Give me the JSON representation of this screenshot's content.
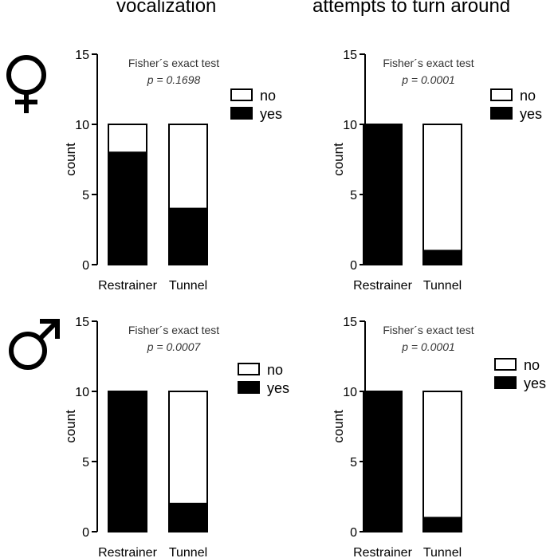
{
  "column_titles": [
    "vocalization",
    "attempts to turn around"
  ],
  "row_symbols": [
    "♀",
    "♂"
  ],
  "colors": {
    "yes": "#000000",
    "no": "#ffffff",
    "stroke": "#000000"
  },
  "chart_data": [
    {
      "type": "bar",
      "stacked": true,
      "title": "vocalization",
      "row": "♀",
      "annotation": {
        "test": "Fisher´s exact test",
        "p": "p = 0.1698"
      },
      "categories": [
        "Restrainer",
        "Tunnel"
      ],
      "series": [
        {
          "name": "yes",
          "values": [
            8,
            4
          ]
        },
        {
          "name": "no",
          "values": [
            2,
            6
          ]
        }
      ],
      "ylabel": "count",
      "xlabel": "",
      "ylim": [
        0,
        15
      ],
      "yticks": [
        0,
        5,
        10,
        15
      ],
      "legend": [
        "no",
        "yes"
      ],
      "legend_position": "top-right",
      "grid": false
    },
    {
      "type": "bar",
      "stacked": true,
      "title": "attempts to turn around",
      "row": "♀",
      "annotation": {
        "test": "Fisher´s exact test",
        "p": "p = 0.0001"
      },
      "categories": [
        "Restrainer",
        "Tunnel"
      ],
      "series": [
        {
          "name": "yes",
          "values": [
            10,
            1
          ]
        },
        {
          "name": "no",
          "values": [
            0,
            9
          ]
        }
      ],
      "ylabel": "count",
      "xlabel": "",
      "ylim": [
        0,
        15
      ],
      "yticks": [
        0,
        5,
        10,
        15
      ],
      "legend": [
        "no",
        "yes"
      ],
      "legend_position": "top-right",
      "grid": false
    },
    {
      "type": "bar",
      "stacked": true,
      "title": "vocalization",
      "row": "♂",
      "annotation": {
        "test": "Fisher´s exact test",
        "p": "p = 0.0007"
      },
      "categories": [
        "Restrainer",
        "Tunnel"
      ],
      "series": [
        {
          "name": "yes",
          "values": [
            10,
            2
          ]
        },
        {
          "name": "no",
          "values": [
            0,
            8
          ]
        }
      ],
      "ylabel": "count",
      "xlabel": "",
      "ylim": [
        0,
        15
      ],
      "yticks": [
        0,
        5,
        10,
        15
      ],
      "legend": [
        "no",
        "yes"
      ],
      "legend_position": "top-right",
      "grid": false
    },
    {
      "type": "bar",
      "stacked": true,
      "title": "attempts to turn around",
      "row": "♂",
      "annotation": {
        "test": "Fisher´s exact test",
        "p": "p = 0.0001"
      },
      "categories": [
        "Restrainer",
        "Tunnel"
      ],
      "series": [
        {
          "name": "yes",
          "values": [
            10,
            1
          ]
        },
        {
          "name": "no",
          "values": [
            0,
            9
          ]
        }
      ],
      "ylabel": "count",
      "xlabel": "",
      "ylim": [
        0,
        15
      ],
      "yticks": [
        0,
        5,
        10,
        15
      ],
      "legend": [
        "no",
        "yes"
      ],
      "legend_position": "top-right",
      "grid": false
    }
  ]
}
